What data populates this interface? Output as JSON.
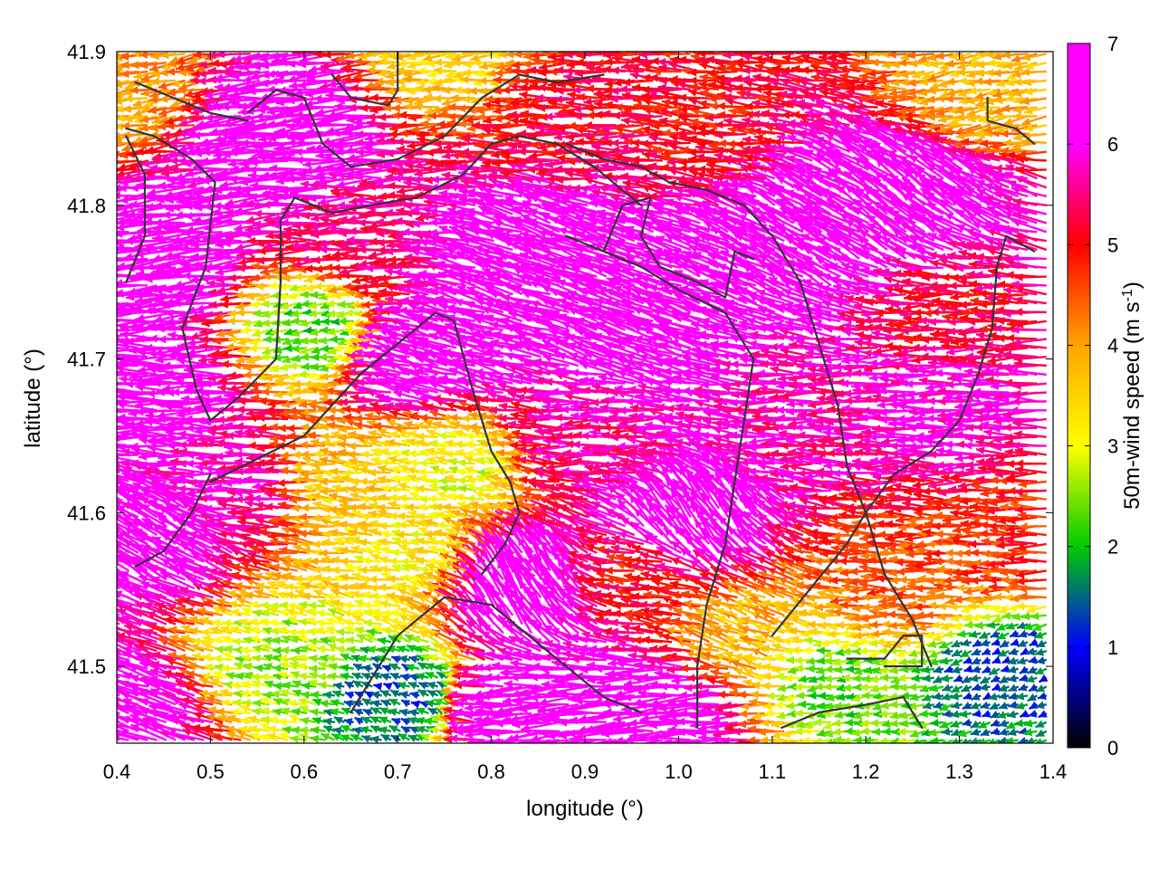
{
  "chart_data": {
    "type": "vector-field",
    "title": "",
    "xlabel": "longitude (°)",
    "ylabel": "latitude (°)",
    "xlim": [
      0.4,
      1.4
    ],
    "ylim": [
      41.45,
      41.9
    ],
    "xticks": [
      "0.4",
      "0.5",
      "0.6",
      "0.7",
      "0.8",
      "0.9",
      "1.0",
      "1.1",
      "1.2",
      "1.3",
      "1.4"
    ],
    "yticks": [
      "41.5",
      "41.6",
      "41.7",
      "41.8",
      "41.9"
    ],
    "colorbar": {
      "label": "50m-wind speed (m s",
      "label_sup": "-1",
      "label_end": ")",
      "range": [
        0,
        7
      ],
      "ticks": [
        "0",
        "1",
        "2",
        "3",
        "4",
        "5",
        "6",
        "7"
      ],
      "colors": [
        "#000000",
        "#0000ff",
        "#00cc00",
        "#ffff00",
        "#ffa500",
        "#ff0000",
        "#ff00ff"
      ]
    },
    "wind_regions": [
      {
        "lon": 0.47,
        "lat": 41.76,
        "speed": 6.9,
        "dir_deg": 185
      },
      {
        "lon": 0.47,
        "lat": 41.68,
        "speed": 6.6,
        "dir_deg": 180
      },
      {
        "lon": 0.45,
        "lat": 41.58,
        "speed": 6.5,
        "dir_deg": 150
      },
      {
        "lon": 0.43,
        "lat": 41.47,
        "speed": 6.3,
        "dir_deg": 160
      },
      {
        "lon": 0.6,
        "lat": 41.85,
        "speed": 6.8,
        "dir_deg": 185
      },
      {
        "lon": 0.62,
        "lat": 41.72,
        "speed": 2.2,
        "dir_deg": 190
      },
      {
        "lon": 0.65,
        "lat": 41.62,
        "speed": 3.6,
        "dir_deg": 175
      },
      {
        "lon": 0.58,
        "lat": 41.5,
        "speed": 2.6,
        "dir_deg": 170
      },
      {
        "lon": 0.72,
        "lat": 41.57,
        "speed": 3.2,
        "dir_deg": 170
      },
      {
        "lon": 0.7,
        "lat": 41.48,
        "speed": 1.4,
        "dir_deg": 160
      },
      {
        "lon": 0.86,
        "lat": 41.76,
        "speed": 7.0,
        "dir_deg": 160
      },
      {
        "lon": 0.74,
        "lat": 41.7,
        "speed": 6.9,
        "dir_deg": 165
      },
      {
        "lon": 0.84,
        "lat": 41.55,
        "speed": 6.9,
        "dir_deg": 120
      },
      {
        "lon": 0.85,
        "lat": 41.47,
        "speed": 6.5,
        "dir_deg": 185
      },
      {
        "lon": 0.92,
        "lat": 41.65,
        "speed": 5.6,
        "dir_deg": 180
      },
      {
        "lon": 0.9,
        "lat": 41.86,
        "speed": 5.2,
        "dir_deg": 180
      },
      {
        "lon": 1.05,
        "lat": 41.85,
        "speed": 5.0,
        "dir_deg": 175
      },
      {
        "lon": 0.96,
        "lat": 41.72,
        "speed": 7.0,
        "dir_deg": 160
      },
      {
        "lon": 1.02,
        "lat": 41.59,
        "speed": 6.9,
        "dir_deg": 125
      },
      {
        "lon": 1.15,
        "lat": 41.78,
        "speed": 6.9,
        "dir_deg": 150
      },
      {
        "lon": 1.25,
        "lat": 41.8,
        "speed": 6.8,
        "dir_deg": 145
      },
      {
        "lon": 1.15,
        "lat": 41.66,
        "speed": 5.7,
        "dir_deg": 180
      },
      {
        "lon": 1.25,
        "lat": 41.55,
        "speed": 4.5,
        "dir_deg": 180
      },
      {
        "lon": 1.3,
        "lat": 41.67,
        "speed": 6.0,
        "dir_deg": 180
      },
      {
        "lon": 1.35,
        "lat": 41.5,
        "speed": 1.3,
        "dir_deg": 200
      },
      {
        "lon": 1.18,
        "lat": 41.49,
        "speed": 2.3,
        "dir_deg": 190
      },
      {
        "lon": 1.08,
        "lat": 41.52,
        "speed": 3.8,
        "dir_deg": 160
      },
      {
        "lon": 1.0,
        "lat": 41.47,
        "speed": 6.9,
        "dir_deg": 185
      },
      {
        "lon": 1.35,
        "lat": 41.88,
        "speed": 3.8,
        "dir_deg": 190
      },
      {
        "lon": 1.3,
        "lat": 41.73,
        "speed": 5.2,
        "dir_deg": 180
      },
      {
        "lon": 0.77,
        "lat": 41.63,
        "speed": 3.0,
        "dir_deg": 170
      },
      {
        "lon": 0.68,
        "lat": 41.78,
        "speed": 5.5,
        "dir_deg": 182
      },
      {
        "lon": 0.55,
        "lat": 41.62,
        "speed": 5.8,
        "dir_deg": 180
      },
      {
        "lon": 0.42,
        "lat": 41.88,
        "speed": 4.0,
        "dir_deg": 190
      },
      {
        "lon": 0.77,
        "lat": 41.9,
        "speed": 3.5,
        "dir_deg": 185
      },
      {
        "lon": 0.97,
        "lat": 41.56,
        "speed": 5.0,
        "dir_deg": 175
      },
      {
        "lon": 1.38,
        "lat": 41.58,
        "speed": 4.8,
        "dir_deg": 180
      }
    ],
    "boundaries": [
      [
        [
          0.42,
          41.88
        ],
        [
          0.46,
          41.87
        ],
        [
          0.5,
          41.86
        ],
        [
          0.54,
          41.855
        ]
      ],
      [
        [
          0.41,
          41.85
        ],
        [
          0.44,
          41.845
        ],
        [
          0.48,
          41.83
        ],
        [
          0.505,
          41.815
        ],
        [
          0.495,
          41.76
        ],
        [
          0.47,
          41.72
        ],
        [
          0.485,
          41.68
        ],
        [
          0.5,
          41.66
        ],
        [
          0.53,
          41.675
        ],
        [
          0.57,
          41.7
        ],
        [
          0.575,
          41.75
        ],
        [
          0.575,
          41.79
        ],
        [
          0.59,
          41.805
        ],
        [
          0.63,
          41.795
        ],
        [
          0.67,
          41.8
        ],
        [
          0.72,
          41.805
        ],
        [
          0.77,
          41.82
        ],
        [
          0.8,
          41.84
        ],
        [
          0.83,
          41.845
        ],
        [
          0.87,
          41.84
        ],
        [
          0.91,
          41.825
        ],
        [
          0.96,
          41.8
        ]
      ],
      [
        [
          0.41,
          41.75
        ],
        [
          0.43,
          41.78
        ],
        [
          0.43,
          41.82
        ],
        [
          0.41,
          41.845
        ]
      ],
      [
        [
          0.54,
          41.86
        ],
        [
          0.57,
          41.875
        ],
        [
          0.6,
          41.87
        ],
        [
          0.62,
          41.84
        ],
        [
          0.65,
          41.825
        ],
        [
          0.7,
          41.83
        ],
        [
          0.75,
          41.845
        ],
        [
          0.79,
          41.87
        ],
        [
          0.83,
          41.885
        ],
        [
          0.87,
          41.88
        ],
        [
          0.92,
          41.885
        ]
      ],
      [
        [
          0.63,
          41.885
        ],
        [
          0.65,
          41.87
        ],
        [
          0.69,
          41.865
        ],
        [
          0.7,
          41.875
        ],
        [
          0.7,
          41.9
        ]
      ],
      [
        [
          0.5,
          41.62
        ],
        [
          0.55,
          41.635
        ],
        [
          0.6,
          41.65
        ],
        [
          0.63,
          41.67
        ],
        [
          0.66,
          41.69
        ],
        [
          0.7,
          41.71
        ],
        [
          0.74,
          41.73
        ],
        [
          0.76,
          41.725
        ],
        [
          0.78,
          41.68
        ],
        [
          0.8,
          41.64
        ],
        [
          0.82,
          41.62
        ],
        [
          0.83,
          41.6
        ],
        [
          0.815,
          41.58
        ],
        [
          0.79,
          41.56
        ]
      ],
      [
        [
          0.42,
          41.565
        ],
        [
          0.45,
          41.575
        ],
        [
          0.48,
          41.6
        ],
        [
          0.5,
          41.625
        ]
      ],
      [
        [
          0.88,
          41.84
        ],
        [
          0.92,
          41.83
        ],
        [
          0.96,
          41.825
        ],
        [
          0.99,
          41.815
        ],
        [
          1.03,
          41.81
        ],
        [
          1.07,
          41.8
        ],
        [
          1.1,
          41.78
        ],
        [
          1.13,
          41.75
        ],
        [
          1.15,
          41.71
        ],
        [
          1.17,
          41.67
        ],
        [
          1.18,
          41.63
        ],
        [
          1.2,
          41.6
        ],
        [
          1.22,
          41.56
        ],
        [
          1.25,
          41.53
        ],
        [
          1.27,
          41.5
        ]
      ],
      [
        [
          0.88,
          41.78
        ],
        [
          0.92,
          41.77
        ],
        [
          0.96,
          41.76
        ],
        [
          1.0,
          41.745
        ],
        [
          1.05,
          41.73
        ],
        [
          1.08,
          41.7
        ],
        [
          1.07,
          41.66
        ],
        [
          1.06,
          41.62
        ],
        [
          1.05,
          41.58
        ],
        [
          1.03,
          41.54
        ],
        [
          1.02,
          41.5
        ],
        [
          1.02,
          41.46
        ]
      ],
      [
        [
          0.65,
          41.47
        ],
        [
          0.7,
          41.52
        ],
        [
          0.75,
          41.545
        ],
        [
          0.8,
          41.54
        ],
        [
          0.84,
          41.52
        ],
        [
          0.88,
          41.5
        ],
        [
          0.92,
          41.48
        ],
        [
          0.96,
          41.47
        ]
      ],
      [
        [
          1.11,
          41.46
        ],
        [
          1.15,
          41.47
        ],
        [
          1.2,
          41.475
        ],
        [
          1.24,
          41.48
        ],
        [
          1.26,
          41.46
        ]
      ],
      [
        [
          1.18,
          41.505
        ],
        [
          1.22,
          41.505
        ],
        [
          1.24,
          41.52
        ],
        [
          1.26,
          41.52
        ],
        [
          1.26,
          41.5
        ],
        [
          1.22,
          41.5
        ]
      ],
      [
        [
          1.1,
          41.52
        ],
        [
          1.14,
          41.55
        ],
        [
          1.18,
          41.58
        ],
        [
          1.2,
          41.6
        ],
        [
          1.23,
          41.625
        ],
        [
          1.27,
          41.64
        ],
        [
          1.3,
          41.66
        ],
        [
          1.32,
          41.69
        ],
        [
          1.335,
          41.72
        ],
        [
          1.34,
          41.76
        ],
        [
          1.35,
          41.78
        ],
        [
          1.38,
          41.77
        ]
      ],
      [
        [
          1.33,
          41.87
        ],
        [
          1.33,
          41.855
        ],
        [
          1.36,
          41.85
        ],
        [
          1.38,
          41.84
        ]
      ],
      [
        [
          0.92,
          41.77
        ],
        [
          0.94,
          41.8
        ],
        [
          0.97,
          41.805
        ],
        [
          0.96,
          41.78
        ],
        [
          0.98,
          41.76
        ],
        [
          1.02,
          41.75
        ],
        [
          1.05,
          41.74
        ],
        [
          1.06,
          41.77
        ],
        [
          1.08,
          41.765
        ]
      ]
    ]
  }
}
